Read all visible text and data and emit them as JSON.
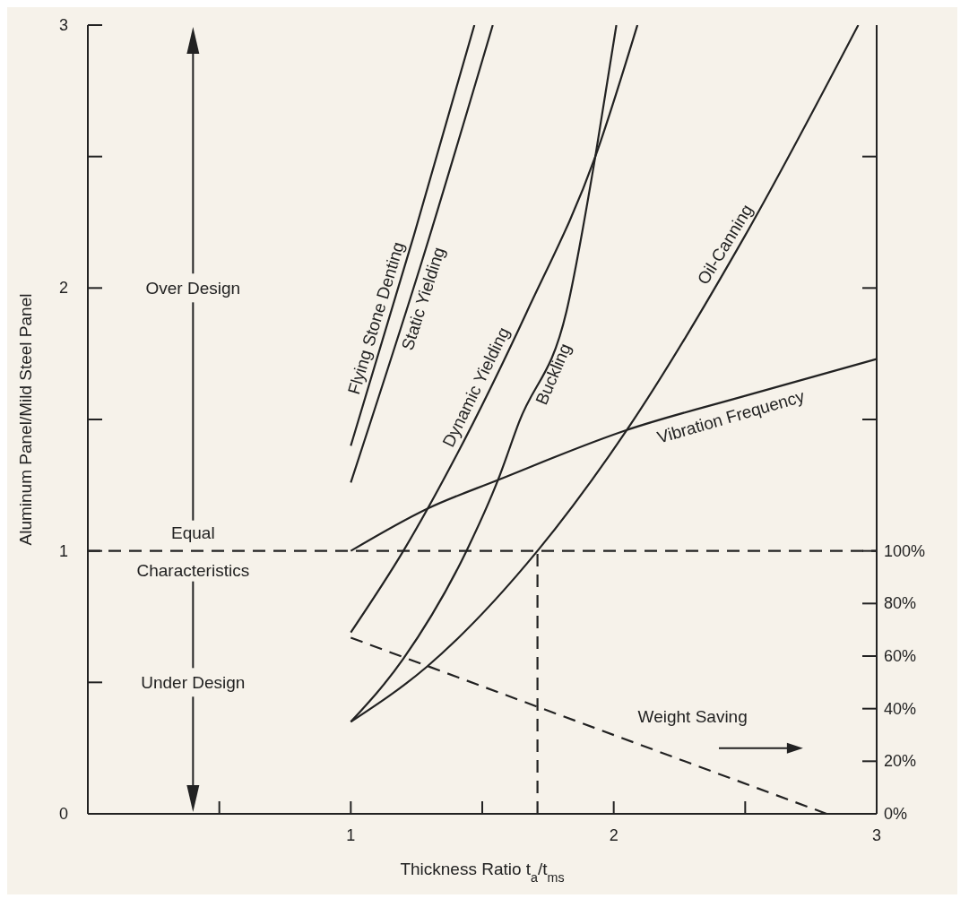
{
  "chart_data": {
    "type": "line",
    "xlabel": "Thickness Ratio t$_{a}$/t$_{ms}$",
    "ylabel": "Aluminum Panel/Mild Steel Panel",
    "xlim": [
      0,
      3
    ],
    "xticks": [
      {
        "value": 0.5,
        "label": null
      },
      1,
      {
        "value": 1.5,
        "label": null
      },
      2,
      {
        "value": 2.5,
        "label": null
      },
      3
    ],
    "ylim": [
      0,
      3
    ],
    "yticks": [
      0,
      {
        "value": 0.5,
        "label": null
      },
      1,
      {
        "value": 1.5,
        "label": null
      },
      2,
      {
        "value": 2.5,
        "label": null
      },
      3
    ],
    "y2lim": [
      0,
      300
    ],
    "y2ticks": [
      {
        "value": 0,
        "label": "0%"
      },
      {
        "value": 20,
        "label": "20%"
      },
      {
        "value": 40,
        "label": "40%"
      },
      {
        "value": 60,
        "label": "60%"
      },
      {
        "value": 80,
        "label": "80%"
      },
      {
        "value": 100,
        "label": "100%"
      },
      {
        "value": 150,
        "label": null
      },
      {
        "value": 200,
        "label": null
      },
      {
        "value": 250,
        "label": null
      }
    ],
    "marker": "none",
    "series": [
      {
        "name": "Flying Stone Denting",
        "color": "#222222",
        "x": [
          1,
          1.24,
          1.47
        ],
        "values": [
          1.4,
          2.2,
          3.0
        ]
      },
      {
        "name": "Static Yielding",
        "color": "#222222",
        "x": [
          1,
          1.27,
          1.54
        ],
        "values": [
          1.26,
          2.1,
          3.0
        ]
      },
      {
        "name": "Dynamic Yielding",
        "color": "#222222",
        "x": [
          1,
          1.2,
          1.4,
          1.67,
          1.93,
          2.09
        ],
        "values": [
          0.69,
          1.0,
          1.36,
          1.91,
          2.5,
          3.0
        ]
      },
      {
        "name": "Buckling",
        "color": "#222222",
        "x": [
          1,
          1.2,
          1.44,
          1.56,
          1.64,
          1.82,
          1.93,
          2.01
        ],
        "values": [
          0.35,
          0.59,
          1.0,
          1.27,
          1.49,
          1.91,
          2.5,
          3.0
        ]
      },
      {
        "name": "Oil-Canning",
        "color": "#222222",
        "x": [
          1,
          1.29,
          1.71,
          2.05,
          2.5,
          2.93
        ],
        "values": [
          0.35,
          0.56,
          1.0,
          1.46,
          2.2,
          3.0
        ]
      },
      {
        "name": "Vibration Frequency",
        "color": "#222222",
        "x": [
          1,
          1.29,
          1.56,
          2.05,
          2.5,
          3.0
        ],
        "values": [
          1.0,
          1.16,
          1.27,
          1.46,
          1.59,
          1.73
        ]
      },
      {
        "name": "Weight Saving",
        "color": "#222222",
        "axis": "y2",
        "line_style": "dashed",
        "x": [
          1,
          2.81
        ],
        "values": [
          67,
          0
        ]
      },
      {
        "color": "#222222",
        "line_style": "dashed",
        "x": [
          1.71,
          1.71
        ],
        "values": [
          0,
          1
        ]
      }
    ],
    "ref_lines": [
      {
        "axis": "y",
        "value": 1,
        "line_style": "dashed",
        "color": "#222222"
      }
    ],
    "annotations": [
      "Over Design",
      "Equal Characteristics",
      "Under Design"
    ]
  }
}
